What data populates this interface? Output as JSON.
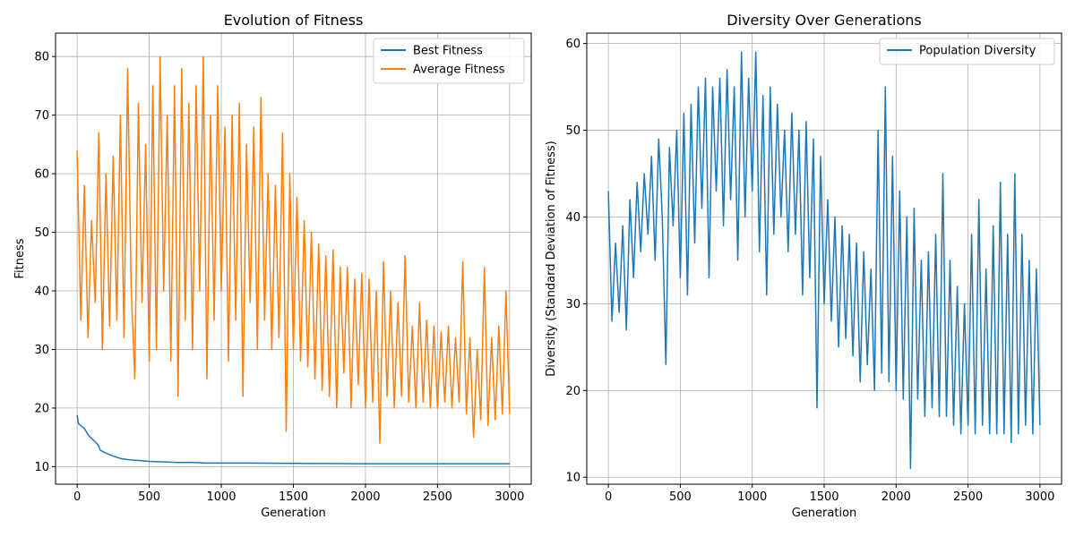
{
  "chart_data": [
    {
      "type": "line",
      "title": "Evolution of Fitness",
      "xlabel": "Generation",
      "ylabel": "Fitness",
      "xlim": [
        -150,
        3150
      ],
      "ylim": [
        7,
        84
      ],
      "xticks": [
        0,
        500,
        1000,
        1500,
        2000,
        2500,
        3000
      ],
      "yticks": [
        10,
        20,
        30,
        40,
        50,
        60,
        70,
        80
      ],
      "grid": true,
      "legend_position": "top-right",
      "series": [
        {
          "name": "Best Fitness",
          "color": "#1f77b4",
          "x": [
            0,
            10,
            20,
            50,
            80,
            100,
            130,
            150,
            160,
            200,
            250,
            300,
            350,
            400,
            450,
            500,
            600,
            700,
            800,
            900,
            1000,
            1200,
            1500,
            2000,
            2500,
            3000
          ],
          "y": [
            18.8,
            17.3,
            17.1,
            16.5,
            15.3,
            14.8,
            14.1,
            13.5,
            12.8,
            12.3,
            11.8,
            11.4,
            11.2,
            11.1,
            11.0,
            10.9,
            10.8,
            10.7,
            10.7,
            10.6,
            10.6,
            10.6,
            10.55,
            10.5,
            10.5,
            10.5
          ]
        },
        {
          "name": "Average Fitness",
          "color": "#ff7f0e",
          "x": [
            0,
            25,
            50,
            75,
            100,
            125,
            150,
            175,
            200,
            225,
            250,
            275,
            300,
            325,
            350,
            375,
            400,
            425,
            450,
            475,
            500,
            525,
            550,
            575,
            600,
            625,
            650,
            675,
            700,
            725,
            750,
            775,
            800,
            825,
            850,
            875,
            900,
            925,
            950,
            975,
            1000,
            1025,
            1050,
            1075,
            1100,
            1125,
            1150,
            1175,
            1200,
            1225,
            1250,
            1275,
            1300,
            1325,
            1350,
            1375,
            1400,
            1425,
            1450,
            1475,
            1500,
            1525,
            1550,
            1575,
            1600,
            1625,
            1650,
            1675,
            1700,
            1725,
            1750,
            1775,
            1800,
            1825,
            1850,
            1875,
            1900,
            1925,
            1950,
            1975,
            2000,
            2025,
            2050,
            2075,
            2100,
            2125,
            2150,
            2175,
            2200,
            2225,
            2250,
            2275,
            2300,
            2325,
            2350,
            2375,
            2400,
            2425,
            2450,
            2475,
            2500,
            2525,
            2550,
            2575,
            2600,
            2625,
            2650,
            2675,
            2700,
            2725,
            2750,
            2775,
            2800,
            2825,
            2850,
            2875,
            2900,
            2925,
            2950,
            2975,
            3000
          ],
          "y": [
            64,
            35,
            58,
            32,
            52,
            38,
            67,
            30,
            60,
            34,
            63,
            35,
            70,
            32,
            78,
            40,
            25,
            72,
            38,
            65,
            28,
            75,
            30,
            80,
            40,
            70,
            28,
            75,
            22,
            78,
            35,
            72,
            30,
            75,
            40,
            80,
            25,
            70,
            35,
            75,
            40,
            68,
            28,
            70,
            35,
            72,
            22,
            65,
            38,
            68,
            30,
            73,
            35,
            60,
            30,
            58,
            32,
            67,
            16,
            60,
            30,
            56,
            28,
            52,
            27,
            50,
            25,
            48,
            23,
            46,
            22,
            47,
            20,
            44,
            26,
            44,
            20,
            42,
            24,
            43,
            20,
            42,
            21,
            40,
            14,
            45,
            22,
            40,
            20,
            38,
            22,
            46,
            21,
            34,
            20,
            38,
            21,
            35,
            20,
            34,
            20,
            33,
            21,
            34,
            20,
            32,
            21,
            45,
            19,
            32,
            15,
            30,
            18,
            44,
            17,
            32,
            18,
            34,
            19,
            40,
            19
          ]
        }
      ]
    },
    {
      "type": "line",
      "title": "Diversity Over Generations",
      "xlabel": "Generation",
      "ylabel": "Diversity (Standard Deviation of Fitness)",
      "xlim": [
        -150,
        3150
      ],
      "ylim": [
        9.2,
        61.2
      ],
      "xticks": [
        0,
        500,
        1000,
        1500,
        2000,
        2500,
        3000
      ],
      "yticks": [
        10,
        20,
        30,
        40,
        50,
        60
      ],
      "grid": true,
      "legend_position": "top-right",
      "series": [
        {
          "name": "Population Diversity",
          "color": "#1f77b4",
          "x": [
            0,
            25,
            50,
            75,
            100,
            125,
            150,
            175,
            200,
            225,
            250,
            275,
            300,
            325,
            350,
            375,
            400,
            425,
            450,
            475,
            500,
            525,
            550,
            575,
            600,
            625,
            650,
            675,
            700,
            725,
            750,
            775,
            800,
            825,
            850,
            875,
            900,
            925,
            950,
            975,
            1000,
            1025,
            1050,
            1075,
            1100,
            1125,
            1150,
            1175,
            1200,
            1225,
            1250,
            1275,
            1300,
            1325,
            1350,
            1375,
            1400,
            1425,
            1450,
            1475,
            1500,
            1525,
            1550,
            1575,
            1600,
            1625,
            1650,
            1675,
            1700,
            1725,
            1750,
            1775,
            1800,
            1825,
            1850,
            1875,
            1900,
            1925,
            1950,
            1975,
            2000,
            2025,
            2050,
            2075,
            2100,
            2125,
            2150,
            2175,
            2200,
            2225,
            2250,
            2275,
            2300,
            2325,
            2350,
            2375,
            2400,
            2425,
            2450,
            2475,
            2500,
            2525,
            2550,
            2575,
            2600,
            2625,
            2650,
            2675,
            2700,
            2725,
            2750,
            2775,
            2800,
            2825,
            2850,
            2875,
            2900,
            2925,
            2950,
            2975,
            3000
          ],
          "y": [
            43,
            28,
            37,
            29,
            39,
            27,
            42,
            33,
            44,
            36,
            45,
            38,
            47,
            35,
            49,
            40,
            23,
            48,
            39,
            50,
            33,
            52,
            31,
            53,
            37,
            55,
            41,
            56,
            33,
            55,
            43,
            56,
            39,
            57,
            42,
            55,
            35,
            59,
            40,
            56,
            43,
            59,
            36,
            54,
            31,
            55,
            38,
            53,
            40,
            50,
            36,
            52,
            38,
            50,
            31,
            51,
            33,
            49,
            18,
            47,
            30,
            42,
            28,
            40,
            25,
            39,
            26,
            38,
            24,
            37,
            21,
            36,
            23,
            34,
            20,
            50,
            22,
            55,
            21,
            47,
            20,
            43,
            19,
            40,
            11,
            41,
            19,
            35,
            17,
            36,
            18,
            38,
            17,
            45,
            17,
            35,
            16,
            32,
            15,
            30,
            16,
            38,
            15,
            42,
            16,
            34,
            15,
            39,
            15,
            44,
            15,
            38,
            14,
            45,
            15,
            38,
            16,
            35,
            15,
            34,
            16
          ]
        }
      ]
    }
  ]
}
